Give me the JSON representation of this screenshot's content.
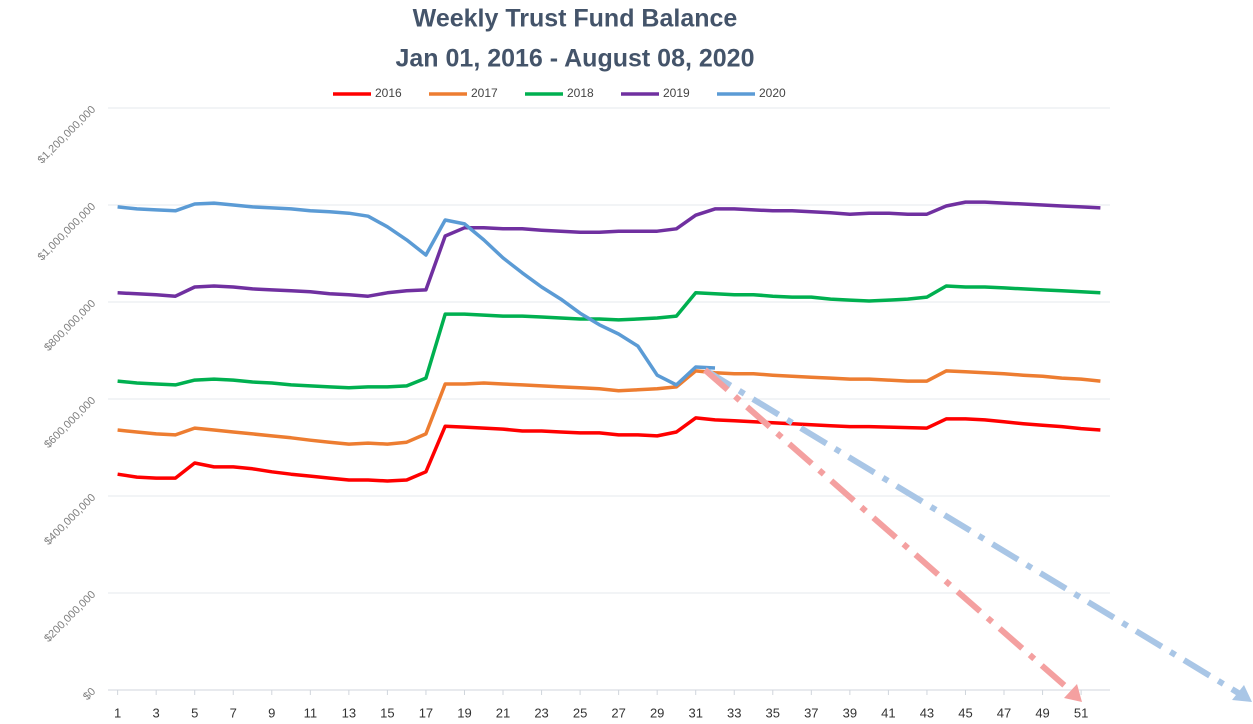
{
  "chart_data": {
    "type": "line",
    "title": "Weekly Trust Fund Balance",
    "subtitle": "Jan 01, 2016 - August 08, 2020",
    "x": [
      1,
      2,
      3,
      4,
      5,
      6,
      7,
      8,
      9,
      10,
      11,
      12,
      13,
      14,
      15,
      16,
      17,
      18,
      19,
      20,
      21,
      22,
      23,
      24,
      25,
      26,
      27,
      28,
      29,
      30,
      31,
      32,
      33,
      34,
      35,
      36,
      37,
      38,
      39,
      40,
      41,
      42,
      43,
      44,
      45,
      46,
      47,
      48,
      49,
      50,
      51,
      52
    ],
    "xlim": [
      0.5,
      52.5
    ],
    "xticks": [
      1,
      3,
      5,
      7,
      9,
      11,
      13,
      15,
      17,
      19,
      21,
      23,
      25,
      27,
      29,
      31,
      33,
      35,
      37,
      39,
      41,
      43,
      45,
      47,
      49,
      51
    ],
    "ylim": [
      0,
      1200000000
    ],
    "yticks": [
      {
        "value": 0,
        "label": "$0"
      },
      {
        "value": 200000000,
        "label": "$200,000,000"
      },
      {
        "value": 400000000,
        "label": "$400,000,000"
      },
      {
        "value": 600000000,
        "label": "$600,000,000"
      },
      {
        "value": 800000000,
        "label": "$800,000,000"
      },
      {
        "value": 1000000000,
        "label": "$1,000,000,000"
      },
      {
        "value": 1200000000,
        "label": "$1,200,000,000"
      }
    ],
    "grid": true,
    "legend": "top",
    "series": [
      {
        "name": "2016",
        "color": "#ff0000",
        "values": [
          445000000,
          439000000,
          437000000,
          437000000,
          468000000,
          460000000,
          460000000,
          456000000,
          450000000,
          445000000,
          441000000,
          437000000,
          433000000,
          433000000,
          431000000,
          433000000,
          450000000,
          544000000,
          542000000,
          540000000,
          538000000,
          534000000,
          534000000,
          532000000,
          530000000,
          530000000,
          526000000,
          526000000,
          524000000,
          532000000,
          561000000,
          557000000,
          555000000,
          553000000,
          551000000,
          549000000,
          547000000,
          545000000,
          543000000,
          543000000,
          542000000,
          541000000,
          540000000,
          559000000,
          559000000,
          557000000,
          553000000,
          549000000,
          546000000,
          543000000,
          539000000,
          536000000
        ]
      },
      {
        "name": "2017",
        "color": "#ed7d31",
        "values": [
          536000000,
          532000000,
          528000000,
          526000000,
          540000000,
          536000000,
          532000000,
          528000000,
          524000000,
          520000000,
          515000000,
          511000000,
          507000000,
          509000000,
          507000000,
          511000000,
          528000000,
          631000000,
          631000000,
          633000000,
          631000000,
          629000000,
          627000000,
          625000000,
          623000000,
          621000000,
          617000000,
          619000000,
          621000000,
          625000000,
          658000000,
          654000000,
          652000000,
          652000000,
          649000000,
          647000000,
          645000000,
          643000000,
          641000000,
          641000000,
          639000000,
          637000000,
          637000000,
          658000000,
          656000000,
          654000000,
          652000000,
          649000000,
          647000000,
          643000000,
          641000000,
          637000000
        ]
      },
      {
        "name": "2018",
        "color": "#00b050",
        "values": [
          637000000,
          633000000,
          631000000,
          629000000,
          639000000,
          641000000,
          639000000,
          635000000,
          633000000,
          629000000,
          627000000,
          625000000,
          623000000,
          625000000,
          625000000,
          627000000,
          643000000,
          775000000,
          775000000,
          773000000,
          771000000,
          771000000,
          769000000,
          767000000,
          765000000,
          765000000,
          763000000,
          765000000,
          767000000,
          771000000,
          819000000,
          817000000,
          815000000,
          815000000,
          812000000,
          810000000,
          810000000,
          806000000,
          804000000,
          802000000,
          804000000,
          806000000,
          810000000,
          833000000,
          831000000,
          831000000,
          829000000,
          827000000,
          825000000,
          823000000,
          821000000,
          819000000
        ]
      },
      {
        "name": "2019",
        "color": "#7030a0",
        "values": [
          819000000,
          817000000,
          815000000,
          812000000,
          831000000,
          833000000,
          831000000,
          827000000,
          825000000,
          823000000,
          821000000,
          817000000,
          815000000,
          812000000,
          819000000,
          823000000,
          825000000,
          936000000,
          953000000,
          953000000,
          951000000,
          951000000,
          948000000,
          946000000,
          944000000,
          944000000,
          946000000,
          946000000,
          946000000,
          951000000,
          979000000,
          992000000,
          992000000,
          990000000,
          988000000,
          988000000,
          986000000,
          984000000,
          981000000,
          983000000,
          983000000,
          981000000,
          981000000,
          998000000,
          1006000000,
          1006000000,
          1004000000,
          1002000000,
          1000000000,
          998000000,
          996000000,
          994000000
        ]
      },
      {
        "name": "2020",
        "color": "#5b9bd5",
        "values": [
          996000000,
          992000000,
          990000000,
          988000000,
          1002000000,
          1004000000,
          1000000000,
          996000000,
          994000000,
          992000000,
          988000000,
          986000000,
          983000000,
          977000000,
          955000000,
          928000000,
          897000000,
          969000000,
          961000000,
          928000000,
          891000000,
          860000000,
          831000000,
          806000000,
          777000000,
          753000000,
          734000000,
          709000000,
          649000000,
          629000000,
          666000000,
          664000000,
          null,
          null,
          null,
          null,
          null,
          null,
          null,
          null,
          null,
          null,
          null,
          null,
          null,
          null,
          null,
          null,
          null,
          null,
          null,
          null
        ]
      }
    ]
  }
}
